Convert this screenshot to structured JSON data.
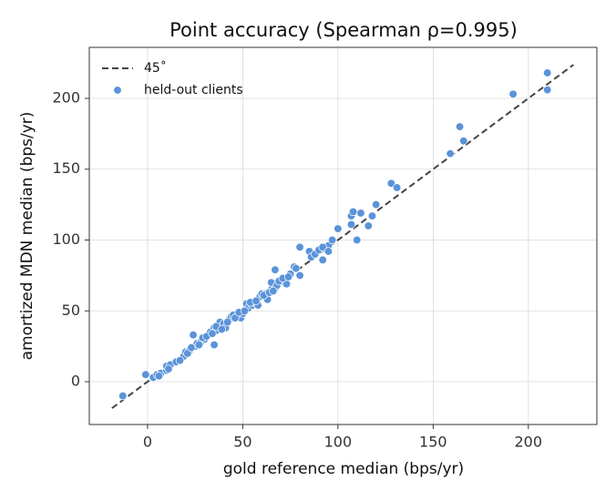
{
  "chart_data": {
    "type": "scatter",
    "title": "Point accuracy (Spearman ρ=0.995)",
    "xlabel": "gold reference median (bps/yr)",
    "ylabel": "amortized MDN median (bps/yr)",
    "xlim": [
      -30.6,
      236
    ],
    "ylim": [
      -30.2,
      236
    ],
    "xticks": [
      0,
      50,
      100,
      150,
      200
    ],
    "yticks": [
      0,
      50,
      100,
      150,
      200
    ],
    "grid": true,
    "legend": "upper left",
    "series": [
      {
        "name": "45˚",
        "type": "line",
        "color": "#444444",
        "dash": true,
        "x": [
          -18.7,
          223.7
        ],
        "values": [
          -18.7,
          223.7
        ]
      },
      {
        "name": "held-out clients",
        "type": "scatter",
        "color": "#5b93d9",
        "x": [
          -13,
          -1,
          3,
          5,
          7,
          10,
          10,
          12,
          15,
          19,
          20,
          22,
          24,
          25,
          26,
          28,
          30,
          32,
          33,
          35,
          35,
          36,
          37,
          38,
          40,
          41,
          43,
          44,
          45,
          47,
          49,
          50,
          52,
          53,
          55,
          56,
          58,
          59,
          60,
          62,
          63,
          65,
          65,
          67,
          67,
          68,
          70,
          72,
          73,
          75,
          77,
          80,
          80,
          85,
          86,
          88,
          90,
          92,
          93,
          95,
          97,
          100,
          107,
          107,
          108,
          110,
          112,
          116,
          118,
          120,
          128,
          131,
          159,
          164,
          166,
          192,
          210,
          210,
          6,
          11,
          17,
          21,
          23,
          27,
          29,
          31,
          34,
          36,
          39,
          42,
          46,
          48,
          51,
          54,
          57,
          61,
          64,
          66,
          69,
          71,
          74,
          78,
          92,
          95
        ],
        "values": [
          -10,
          5,
          3,
          5,
          6,
          8,
          11,
          12,
          14,
          18,
          21,
          22,
          33,
          25,
          27,
          28,
          30,
          33,
          35,
          38,
          26,
          36,
          40,
          42,
          41,
          38,
          44,
          46,
          47,
          46,
          45,
          48,
          55,
          52,
          54,
          56,
          54,
          60,
          62,
          62,
          58,
          65,
          70,
          79,
          66,
          68,
          72,
          70,
          69,
          76,
          81,
          75,
          95,
          92,
          88,
          90,
          93,
          86,
          94,
          96,
          100,
          108,
          117,
          111,
          120,
          100,
          119,
          110,
          117,
          125,
          140,
          137,
          161,
          180,
          170,
          203,
          218,
          206,
          4,
          9,
          15,
          20,
          24,
          26,
          31,
          32,
          34,
          39,
          37,
          42,
          45,
          49,
          50,
          56,
          57,
          61,
          63,
          64,
          71,
          73,
          74,
          80,
          95,
          92
        ]
      }
    ]
  }
}
